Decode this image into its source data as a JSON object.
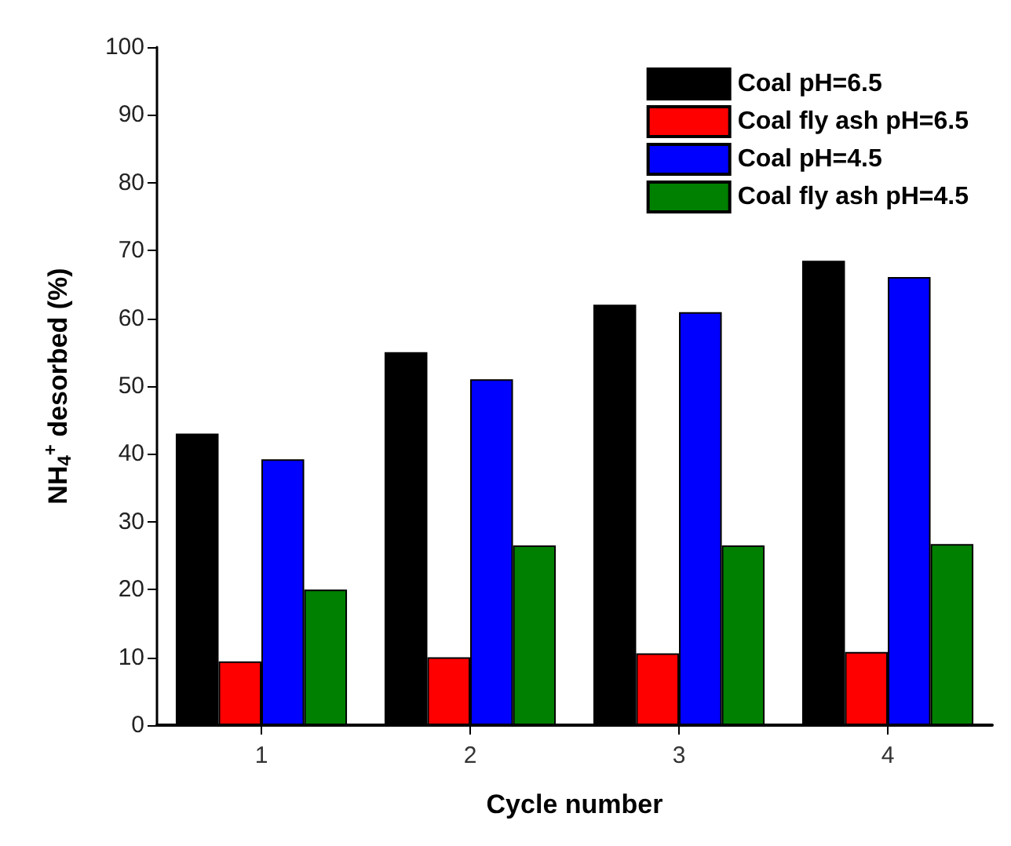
{
  "chart_data": {
    "type": "bar",
    "xlabel": "Cycle number",
    "ylabel": "NH$_{4}$$^{+}$ desorbed (%)",
    "categories": [
      "1",
      "2",
      "3",
      "4"
    ],
    "series": [
      {
        "name": "Coal pH=6.5",
        "color": "#000000",
        "values": [
          43,
          55,
          62,
          68.5
        ]
      },
      {
        "name": "Coal fly ash pH=6.5",
        "color": "#ff0000",
        "values": [
          9.4,
          10,
          10.6,
          10.8
        ]
      },
      {
        "name": "Coal pH=4.5",
        "color": "#0000ff",
        "values": [
          39.2,
          51,
          60.9,
          66.1
        ]
      },
      {
        "name": "Coal fly ash pH=4.5",
        "color": "#008000",
        "values": [
          20,
          26.5,
          26.5,
          26.7
        ]
      }
    ],
    "ylim": [
      0,
      100
    ],
    "yticks": [
      0,
      10,
      20,
      30,
      40,
      50,
      60,
      70,
      80,
      90,
      100
    ],
    "grid": false,
    "legend": "top right"
  }
}
